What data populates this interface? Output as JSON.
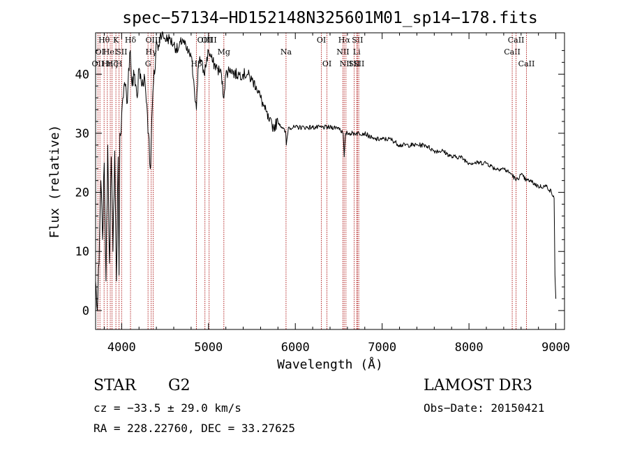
{
  "chart_data": {
    "type": "line",
    "title": "spec−57134−HD152148N325601M01_sp14−178.fits",
    "xlabel": "Wavelength (Å)",
    "ylabel": "Flux (relative)",
    "xlim": [
      3700,
      9100
    ],
    "ylim": [
      -3.2,
      47
    ],
    "xticks": [
      4000,
      5000,
      6000,
      7000,
      8000,
      9000
    ],
    "yticks": [
      0,
      10,
      20,
      30,
      40
    ],
    "grid": false,
    "series": [
      {
        "name": "spectrum",
        "x": [
          3700,
          3720,
          3740,
          3760,
          3780,
          3800,
          3820,
          3840,
          3860,
          3880,
          3900,
          3920,
          3940,
          3960,
          3970,
          3980,
          4000,
          4020,
          4040,
          4060,
          4080,
          4100,
          4120,
          4150,
          4180,
          4200,
          4230,
          4260,
          4290,
          4310,
          4330,
          4340,
          4360,
          4380,
          4400,
          4420,
          4450,
          4500,
          4550,
          4600,
          4650,
          4700,
          4750,
          4800,
          4830,
          4861,
          4880,
          4900,
          4950,
          5000,
          5050,
          5100,
          5150,
          5172,
          5200,
          5250,
          5300,
          5350,
          5400,
          5450,
          5500,
          5550,
          5600,
          5650,
          5700,
          5750,
          5800,
          5850,
          5890,
          5896,
          5920,
          6000,
          6100,
          6200,
          6300,
          6400,
          6500,
          6550,
          6563,
          6580,
          6600,
          6700,
          6800,
          6900,
          7000,
          7100,
          7200,
          7300,
          7400,
          7500,
          7600,
          7700,
          7800,
          7900,
          8000,
          8100,
          8200,
          8300,
          8400,
          8498,
          8542,
          8600,
          8662,
          8700,
          8800,
          8900,
          8950,
          8980,
          8990,
          9000
        ],
        "y": [
          5,
          0,
          8,
          22,
          12,
          25,
          5,
          28,
          8,
          26,
          10,
          27,
          5,
          26,
          6,
          30,
          33,
          36,
          38,
          35,
          41,
          44,
          38,
          40,
          36,
          41,
          38,
          40,
          35,
          30,
          24,
          28,
          37,
          40,
          46,
          44,
          47,
          46,
          46,
          45,
          44,
          46,
          44,
          43,
          39,
          34,
          41,
          43,
          40,
          44,
          42,
          41,
          40,
          36,
          40,
          41,
          40,
          40,
          40,
          40,
          39,
          38,
          36,
          34,
          32,
          31,
          32,
          31,
          30,
          28,
          31,
          31,
          31,
          31,
          31,
          31,
          31,
          30,
          26,
          30,
          30,
          30,
          30,
          29,
          29,
          29,
          28,
          28,
          28,
          28,
          27,
          27,
          26,
          26,
          25,
          25,
          25,
          24,
          24,
          23,
          22,
          23,
          22,
          22,
          21,
          21,
          20,
          19,
          6,
          2
        ]
      }
    ],
    "lines": [
      {
        "wave": 3727,
        "label": "OII",
        "row": 2
      },
      {
        "wave": 3750,
        "label": "OI",
        "row": 1
      },
      {
        "wave": 3798,
        "label": "Hθ",
        "row": 0
      },
      {
        "wave": 3835,
        "label": "Hη",
        "row": 2
      },
      {
        "wave": 3869,
        "label": "HeI",
        "row": 1
      },
      {
        "wave": 3889,
        "label": "Hζ",
        "row": 2
      },
      {
        "wave": 3934,
        "label": "K",
        "row": 0
      },
      {
        "wave": 3970,
        "label": "H",
        "row": 2
      },
      {
        "wave": 4000,
        "label": "SII",
        "row": 1
      },
      {
        "wave": 4102,
        "label": "Hδ",
        "row": 0
      },
      {
        "wave": 4304,
        "label": "G",
        "row": 2
      },
      {
        "wave": 4340,
        "label": "Hγ",
        "row": 1
      },
      {
        "wave": 4363,
        "label": "OIII",
        "row": 0
      },
      {
        "wave": 4861,
        "label": "Hβ",
        "row": 2
      },
      {
        "wave": 4959,
        "label": "OIII",
        "row": 0
      },
      {
        "wave": 5007,
        "label": "OIII",
        "row": 0
      },
      {
        "wave": 5177,
        "label": "Mg",
        "row": 1
      },
      {
        "wave": 5893,
        "label": "Na",
        "row": 1
      },
      {
        "wave": 6300,
        "label": "OI",
        "row": 0
      },
      {
        "wave": 6364,
        "label": "OI",
        "row": 2
      },
      {
        "wave": 6548,
        "label": "NII",
        "row": 1
      },
      {
        "wave": 6563,
        "label": "Hα",
        "row": 0
      },
      {
        "wave": 6583,
        "label": "NII",
        "row": 2
      },
      {
        "wave": 6678,
        "label": "SII",
        "row": 2
      },
      {
        "wave": 6707,
        "label": "Li",
        "row": 1
      },
      {
        "wave": 6716,
        "label": "SII",
        "row": 0
      },
      {
        "wave": 6731,
        "label": "SII",
        "row": 2
      },
      {
        "wave": 8498,
        "label": "CaII",
        "row": 1
      },
      {
        "wave": 8542,
        "label": "CaII",
        "row": 0
      },
      {
        "wave": 8662,
        "label": "CaII",
        "row": 2
      }
    ]
  },
  "info": {
    "object_class": "STAR",
    "subclass": "G2",
    "survey": "LAMOST DR3",
    "redshift": "cz = −33.5 ± 29.0 km/s",
    "obs_date": "Obs−Date: 20150421",
    "coordinates": "RA = 228.22760, DEC =  33.27625"
  }
}
